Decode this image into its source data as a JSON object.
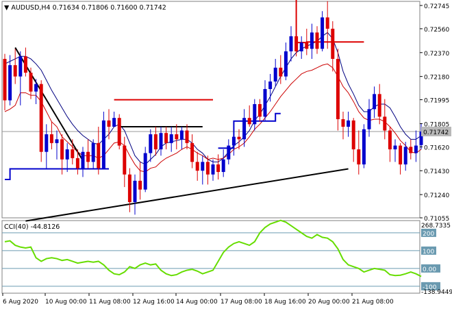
{
  "header": {
    "arrow": "▼",
    "symbol": "AUDUSD,H4",
    "o": "0.71634",
    "h": "0.71806",
    "l": "0.71600",
    "c": "0.71742"
  },
  "cci": {
    "label": "CCI(40) -44.8126",
    "max_label": "268.7335",
    "min_label": "-138.9449",
    "levels": [
      "200",
      "100",
      "0.00",
      "-100"
    ]
  },
  "price_axis": {
    "ticks": [
      "0.72745",
      "0.72560",
      "0.72370",
      "0.72180",
      "0.71995",
      "0.71805",
      "0.71620",
      "0.71430",
      "0.71240",
      "0.71055"
    ],
    "current": "0.71742"
  },
  "time_axis": [
    "6 Aug 2020",
    "10 Aug 00:00",
    "11 Aug 08:00",
    "12 Aug 16:00",
    "14 Aug 00:00",
    "17 Aug 08:00",
    "18 Aug 16:00",
    "20 Aug 00:00",
    "21 Aug 08:00"
  ],
  "colors": {
    "bull": "#0000cd",
    "bear": "#dd0000",
    "cci_line": "#66dd00",
    "level_line": "#6a9ab0",
    "grid": "#7f7f7f"
  },
  "chart_data": {
    "type": "candlestick",
    "symbol": "AUDUSD",
    "timeframe": "H4",
    "ylim": [
      0.71055,
      0.72745
    ],
    "candles": [
      {
        "o": 0.7232,
        "h": 0.7236,
        "l": 0.7191,
        "c": 0.7199
      },
      {
        "o": 0.7199,
        "h": 0.7235,
        "l": 0.7195,
        "c": 0.7227
      },
      {
        "o": 0.7227,
        "h": 0.724,
        "l": 0.7212,
        "c": 0.7218
      },
      {
        "o": 0.7218,
        "h": 0.7238,
        "l": 0.7195,
        "c": 0.7234
      },
      {
        "o": 0.7234,
        "h": 0.7241,
        "l": 0.7218,
        "c": 0.7221
      },
      {
        "o": 0.7221,
        "h": 0.7225,
        "l": 0.72,
        "c": 0.7206
      },
      {
        "o": 0.7206,
        "h": 0.7216,
        "l": 0.7196,
        "c": 0.7212
      },
      {
        "o": 0.7212,
        "h": 0.7215,
        "l": 0.715,
        "c": 0.7158
      },
      {
        "o": 0.7158,
        "h": 0.718,
        "l": 0.7145,
        "c": 0.7172
      },
      {
        "o": 0.7172,
        "h": 0.7182,
        "l": 0.716,
        "c": 0.7165
      },
      {
        "o": 0.7165,
        "h": 0.7175,
        "l": 0.7152,
        "c": 0.7168
      },
      {
        "o": 0.7168,
        "h": 0.7172,
        "l": 0.714,
        "c": 0.7152
      },
      {
        "o": 0.7152,
        "h": 0.7165,
        "l": 0.7142,
        "c": 0.716
      },
      {
        "o": 0.716,
        "h": 0.7168,
        "l": 0.7148,
        "c": 0.7153
      },
      {
        "o": 0.7153,
        "h": 0.716,
        "l": 0.714,
        "c": 0.7145
      },
      {
        "o": 0.7145,
        "h": 0.7162,
        "l": 0.7138,
        "c": 0.7158
      },
      {
        "o": 0.7158,
        "h": 0.7168,
        "l": 0.7145,
        "c": 0.715
      },
      {
        "o": 0.715,
        "h": 0.7168,
        "l": 0.7145,
        "c": 0.7165
      },
      {
        "o": 0.7165,
        "h": 0.7178,
        "l": 0.714,
        "c": 0.7145
      },
      {
        "o": 0.7145,
        "h": 0.719,
        "l": 0.7145,
        "c": 0.7183
      },
      {
        "o": 0.7183,
        "h": 0.7192,
        "l": 0.7168,
        "c": 0.7178
      },
      {
        "o": 0.7178,
        "h": 0.719,
        "l": 0.7178,
        "c": 0.7185
      },
      {
        "o": 0.7185,
        "h": 0.7188,
        "l": 0.716,
        "c": 0.7163
      },
      {
        "o": 0.7163,
        "h": 0.717,
        "l": 0.713,
        "c": 0.714
      },
      {
        "o": 0.714,
        "h": 0.7145,
        "l": 0.711,
        "c": 0.7118
      },
      {
        "o": 0.7118,
        "h": 0.714,
        "l": 0.7108,
        "c": 0.7135
      },
      {
        "o": 0.7135,
        "h": 0.715,
        "l": 0.712,
        "c": 0.7128
      },
      {
        "o": 0.7128,
        "h": 0.7162,
        "l": 0.7126,
        "c": 0.7157
      },
      {
        "o": 0.7157,
        "h": 0.7176,
        "l": 0.715,
        "c": 0.7172
      },
      {
        "o": 0.7172,
        "h": 0.7178,
        "l": 0.7155,
        "c": 0.716
      },
      {
        "o": 0.716,
        "h": 0.7178,
        "l": 0.7155,
        "c": 0.7173
      },
      {
        "o": 0.7173,
        "h": 0.7178,
        "l": 0.716,
        "c": 0.7165
      },
      {
        "o": 0.7165,
        "h": 0.7178,
        "l": 0.7158,
        "c": 0.7172
      },
      {
        "o": 0.7172,
        "h": 0.718,
        "l": 0.716,
        "c": 0.7168
      },
      {
        "o": 0.7168,
        "h": 0.7178,
        "l": 0.716,
        "c": 0.7175
      },
      {
        "o": 0.7175,
        "h": 0.718,
        "l": 0.716,
        "c": 0.7165
      },
      {
        "o": 0.7165,
        "h": 0.7172,
        "l": 0.7145,
        "c": 0.715
      },
      {
        "o": 0.715,
        "h": 0.7158,
        "l": 0.7135,
        "c": 0.7143
      },
      {
        "o": 0.7143,
        "h": 0.7155,
        "l": 0.7132,
        "c": 0.715
      },
      {
        "o": 0.715,
        "h": 0.7155,
        "l": 0.7132,
        "c": 0.714
      },
      {
        "o": 0.714,
        "h": 0.7152,
        "l": 0.7135,
        "c": 0.7148
      },
      {
        "o": 0.7148,
        "h": 0.7156,
        "l": 0.7136,
        "c": 0.7142
      },
      {
        "o": 0.7142,
        "h": 0.716,
        "l": 0.7138,
        "c": 0.7152
      },
      {
        "o": 0.7152,
        "h": 0.7168,
        "l": 0.7148,
        "c": 0.7163
      },
      {
        "o": 0.7163,
        "h": 0.7178,
        "l": 0.7155,
        "c": 0.717
      },
      {
        "o": 0.717,
        "h": 0.7176,
        "l": 0.716,
        "c": 0.7168
      },
      {
        "o": 0.7168,
        "h": 0.7192,
        "l": 0.7162,
        "c": 0.7185
      },
      {
        "o": 0.7185,
        "h": 0.7195,
        "l": 0.7178,
        "c": 0.718
      },
      {
        "o": 0.718,
        "h": 0.72,
        "l": 0.7175,
        "c": 0.7196
      },
      {
        "o": 0.7196,
        "h": 0.72,
        "l": 0.7182,
        "c": 0.7186
      },
      {
        "o": 0.7186,
        "h": 0.7215,
        "l": 0.7183,
        "c": 0.7208
      },
      {
        "o": 0.7208,
        "h": 0.722,
        "l": 0.7198,
        "c": 0.7214
      },
      {
        "o": 0.7214,
        "h": 0.7232,
        "l": 0.721,
        "c": 0.7225
      },
      {
        "o": 0.7225,
        "h": 0.7235,
        "l": 0.7212,
        "c": 0.7218
      },
      {
        "o": 0.7218,
        "h": 0.7245,
        "l": 0.7215,
        "c": 0.7238
      },
      {
        "o": 0.7238,
        "h": 0.7258,
        "l": 0.723,
        "c": 0.725
      },
      {
        "o": 0.725,
        "h": 0.7262,
        "l": 0.7234,
        "c": 0.7238
      },
      {
        "o": 0.7238,
        "h": 0.725,
        "l": 0.7232,
        "c": 0.7245
      },
      {
        "o": 0.7245,
        "h": 0.7256,
        "l": 0.7235,
        "c": 0.724
      },
      {
        "o": 0.724,
        "h": 0.726,
        "l": 0.7232,
        "c": 0.7253
      },
      {
        "o": 0.7253,
        "h": 0.7258,
        "l": 0.7236,
        "c": 0.724
      },
      {
        "o": 0.724,
        "h": 0.727,
        "l": 0.7238,
        "c": 0.7265
      },
      {
        "o": 0.7265,
        "h": 0.7278,
        "l": 0.724,
        "c": 0.7256
      },
      {
        "o": 0.7256,
        "h": 0.7262,
        "l": 0.7222,
        "c": 0.7232
      },
      {
        "o": 0.7232,
        "h": 0.724,
        "l": 0.7175,
        "c": 0.7184
      },
      {
        "o": 0.7184,
        "h": 0.719,
        "l": 0.7168,
        "c": 0.7178
      },
      {
        "o": 0.7178,
        "h": 0.719,
        "l": 0.717,
        "c": 0.7183
      },
      {
        "o": 0.7183,
        "h": 0.7185,
        "l": 0.715,
        "c": 0.716
      },
      {
        "o": 0.716,
        "h": 0.7175,
        "l": 0.714,
        "c": 0.7148
      },
      {
        "o": 0.7148,
        "h": 0.718,
        "l": 0.7145,
        "c": 0.7176
      },
      {
        "o": 0.7176,
        "h": 0.72,
        "l": 0.717,
        "c": 0.7192
      },
      {
        "o": 0.7192,
        "h": 0.721,
        "l": 0.7185,
        "c": 0.7204
      },
      {
        "o": 0.7204,
        "h": 0.7212,
        "l": 0.718,
        "c": 0.7186
      },
      {
        "o": 0.7186,
        "h": 0.72,
        "l": 0.7168,
        "c": 0.7175
      },
      {
        "o": 0.7175,
        "h": 0.7178,
        "l": 0.715,
        "c": 0.716
      },
      {
        "o": 0.716,
        "h": 0.7168,
        "l": 0.715,
        "c": 0.7163
      },
      {
        "o": 0.7163,
        "h": 0.7165,
        "l": 0.714,
        "c": 0.7148
      },
      {
        "o": 0.7148,
        "h": 0.7166,
        "l": 0.7143,
        "c": 0.7162
      },
      {
        "o": 0.7162,
        "h": 0.7168,
        "l": 0.7152,
        "c": 0.7157
      },
      {
        "o": 0.7157,
        "h": 0.7175,
        "l": 0.715,
        "c": 0.7163
      },
      {
        "o": 0.71634,
        "h": 0.71806,
        "l": 0.716,
        "c": 0.71742
      }
    ],
    "sma_red": [
      0.719,
      0.7192,
      0.7195,
      0.7205,
      0.7205,
      0.7203,
      0.7203,
      0.7198,
      0.719,
      0.7182,
      0.7178,
      0.717,
      0.7166,
      0.7162,
      0.7158,
      0.7155,
      0.7155,
      0.7155,
      0.7153,
      0.7155,
      0.716,
      0.7165,
      0.7166,
      0.7163,
      0.7155,
      0.7148,
      0.7143,
      0.7142,
      0.7145,
      0.7146,
      0.715,
      0.7153,
      0.7155,
      0.7157,
      0.716,
      0.7162,
      0.716,
      0.7157,
      0.7155,
      0.7152,
      0.7153,
      0.7152,
      0.7153,
      0.7156,
      0.716,
      0.7162,
      0.7165,
      0.717,
      0.7176,
      0.718,
      0.7185,
      0.719,
      0.7196,
      0.7202,
      0.7207,
      0.7212,
      0.7216,
      0.722,
      0.7222,
      0.7223,
      0.7225,
      0.7227,
      0.7228,
      0.7225,
      0.7218,
      0.721,
      0.7205,
      0.7198,
      0.719,
      0.7185,
      0.7183,
      0.7184,
      0.7184,
      0.7182,
      0.7178,
      0.7173,
      0.7167,
      0.7163,
      0.7158,
      0.7157,
      0.716
    ],
    "sma_black": [
      0.7228,
      0.723,
      0.7232,
      0.7234,
      0.7234,
      0.7232,
      0.7228,
      0.7223,
      0.7215,
      0.7207,
      0.72,
      0.7193,
      0.7186,
      0.718,
      0.7175,
      0.7171,
      0.7168,
      0.7165,
      0.7164,
      0.7168,
      0.7172,
      0.7178,
      0.718,
      0.7175,
      0.7165,
      0.7155,
      0.715,
      0.7148,
      0.7152,
      0.7156,
      0.7162,
      0.7165,
      0.7166,
      0.7167,
      0.7168,
      0.7168,
      0.7165,
      0.716,
      0.7157,
      0.7152,
      0.715,
      0.715,
      0.7153,
      0.7158,
      0.7163,
      0.7166,
      0.717,
      0.7175,
      0.7183,
      0.7188,
      0.7195,
      0.7202,
      0.721,
      0.7218,
      0.7225,
      0.7232,
      0.7237,
      0.724,
      0.7242,
      0.7244,
      0.7246,
      0.725,
      0.7253,
      0.7248,
      0.7237,
      0.7222,
      0.7212,
      0.7204,
      0.7195,
      0.719,
      0.719,
      0.7194,
      0.7196,
      0.7196,
      0.7193,
      0.7186,
      0.7178,
      0.7172,
      0.7168,
      0.7168,
      0.7171
    ],
    "red_level": {
      "value": 0.71995,
      "from": 21,
      "to": 40
    },
    "black_level": {
      "value": 0.7178,
      "from": 22,
      "to": 38
    },
    "blue_ladder": [
      {
        "from": 0,
        "to": 1,
        "v": 0.7136
      },
      {
        "from": 1,
        "to": 20,
        "v": 0.71445
      },
      {
        "from": 41,
        "to": 44,
        "v": 0.7161
      },
      {
        "from": 44,
        "to": 47,
        "v": 0.71825
      },
      {
        "from": 47,
        "to": 52,
        "v": 0.71825
      },
      {
        "from": 52,
        "to": 53,
        "v": 0.71885
      }
    ],
    "red_ladder": [
      {
        "from": 54,
        "to": 56,
        "v": 0.7285
      },
      {
        "from": 56,
        "to": 58,
        "v": 0.7245
      },
      {
        "from": 58,
        "to": 69,
        "v": 0.72455
      }
    ],
    "trendlines": [
      {
        "x1": 2,
        "y1": 0.7241,
        "x2": 15,
        "y2": 0.7151
      },
      {
        "x1": 4,
        "y1": 0.7103,
        "x2": 66,
        "y2": 0.71445
      }
    ],
    "cci_values": [
      150,
      155,
      130,
      120,
      115,
      120,
      60,
      40,
      55,
      60,
      55,
      45,
      50,
      40,
      30,
      35,
      40,
      35,
      40,
      20,
      -10,
      -30,
      -35,
      -20,
      10,
      0,
      20,
      30,
      20,
      25,
      -10,
      -30,
      -40,
      -35,
      -20,
      -10,
      -5,
      -15,
      -30,
      -20,
      -10,
      40,
      90,
      120,
      140,
      150,
      140,
      130,
      150,
      200,
      230,
      250,
      260,
      270,
      260,
      240,
      220,
      200,
      180,
      170,
      190,
      175,
      170,
      150,
      110,
      50,
      20,
      10,
      0,
      -20,
      -10,
      0,
      -5,
      -10,
      -35,
      -40,
      -38,
      -30,
      -20,
      -30,
      -45
    ]
  }
}
